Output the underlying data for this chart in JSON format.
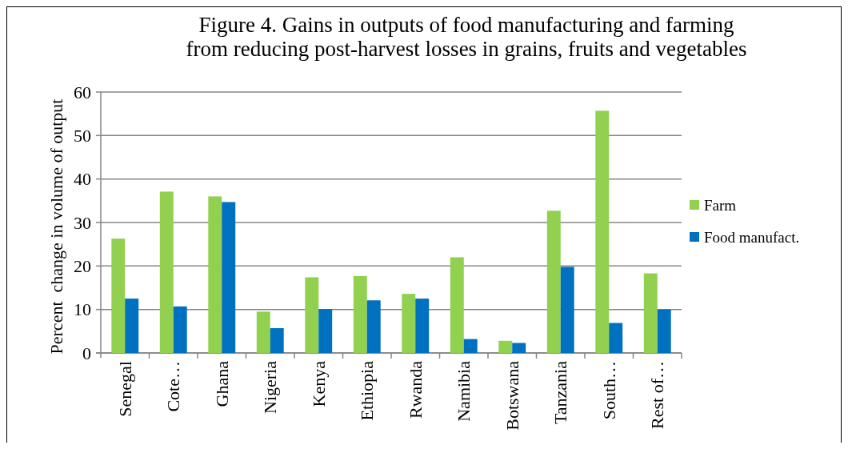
{
  "chart_data": {
    "type": "bar",
    "title": "Figure 4. Gains in outputs of food manufacturing and farming\nfrom reducing post-harvest losses in grains, fruits and vegetables",
    "ylabel": "Percent  change in volume of output",
    "categories": [
      "Senegal",
      "Cote…",
      "Ghana",
      "Nigeria",
      "Kenya",
      "Ethiopia",
      "Rwanda",
      "Namibia",
      "Botswana",
      "Tanzania",
      "South…",
      "Rest of…"
    ],
    "series": [
      {
        "name": "Farm",
        "color": "#92d050",
        "values": [
          26.3,
          37.1,
          36.0,
          9.5,
          17.4,
          17.7,
          13.6,
          22.0,
          2.8,
          32.7,
          55.7,
          18.3
        ]
      },
      {
        "name": "Food manufact.",
        "color": "#0070c0",
        "values": [
          12.5,
          10.7,
          34.7,
          5.7,
          10.1,
          12.1,
          12.5,
          3.2,
          2.3,
          19.8,
          6.9,
          10.0
        ]
      }
    ],
    "ylim": [
      0,
      60
    ],
    "yticks": [
      0,
      10,
      20,
      30,
      40,
      50,
      60
    ],
    "grid": "y",
    "legend": "right"
  }
}
